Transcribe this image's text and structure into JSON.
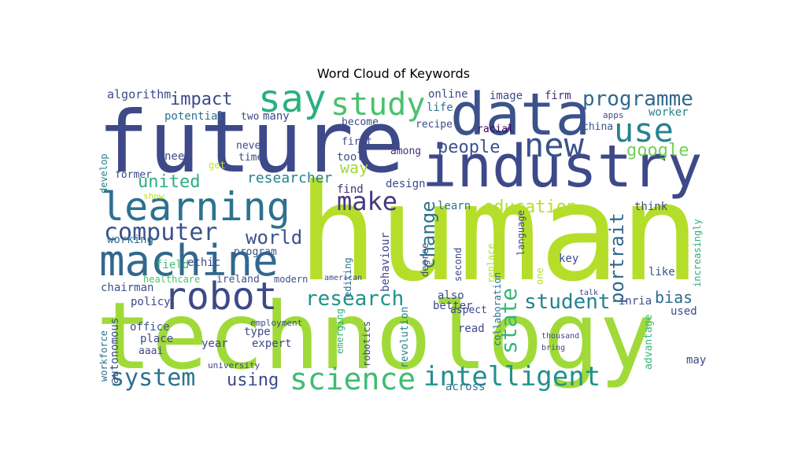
{
  "chart_data": {
    "type": "wordcloud",
    "title": "Word Cloud of Keywords",
    "colormap": "viridis",
    "words": [
      {
        "text": "human",
        "color": "#b5de2b"
      },
      {
        "text": "technology",
        "color": "#a0da39"
      },
      {
        "text": "future",
        "color": "#3e4989"
      },
      {
        "text": "industry",
        "color": "#3e4989"
      },
      {
        "text": "data",
        "color": "#3b528b"
      },
      {
        "text": "machine",
        "color": "#31688e"
      },
      {
        "text": "learning",
        "color": "#2c728e"
      },
      {
        "text": "science",
        "color": "#3fbc73"
      },
      {
        "text": "robot",
        "color": "#3e4989"
      },
      {
        "text": "say",
        "color": "#2ab07f"
      },
      {
        "text": "study",
        "color": "#4ac16d"
      },
      {
        "text": "new",
        "color": "#3b528b"
      },
      {
        "text": "use",
        "color": "#26828e"
      },
      {
        "text": "intelligent",
        "color": "#21918c"
      },
      {
        "text": "make",
        "color": "#443983"
      },
      {
        "text": "computer",
        "color": "#3b528b"
      },
      {
        "text": "system",
        "color": "#2c728e"
      },
      {
        "text": "research",
        "color": "#21918c"
      },
      {
        "text": "student",
        "color": "#26828e"
      },
      {
        "text": "programme",
        "color": "#31688e"
      },
      {
        "text": "world",
        "color": "#3b528b"
      },
      {
        "text": "education",
        "color": "#b5de2b"
      },
      {
        "text": "google",
        "color": "#73d056"
      },
      {
        "text": "people",
        "color": "#3b528b"
      },
      {
        "text": "impact",
        "color": "#3e4989"
      },
      {
        "text": "united",
        "color": "#2ab07f"
      },
      {
        "text": "portrait",
        "color": "#31688e"
      },
      {
        "text": "state",
        "color": "#35b779"
      },
      {
        "text": "change",
        "color": "#2c728e"
      },
      {
        "text": "using",
        "color": "#3e4989"
      },
      {
        "text": "way",
        "color": "#a0da39"
      },
      {
        "text": "researcher",
        "color": "#26828e"
      },
      {
        "text": "bias",
        "color": "#31688e"
      },
      {
        "text": "online",
        "color": "#3e4989"
      },
      {
        "text": "image",
        "color": "#3e4989"
      },
      {
        "text": "firm",
        "color": "#472d7b"
      },
      {
        "text": "life",
        "color": "#2c728e"
      },
      {
        "text": "recipe",
        "color": "#3e4989"
      },
      {
        "text": "racial",
        "color": "#440154"
      },
      {
        "text": "first",
        "color": "#3e4989"
      },
      {
        "text": "tool",
        "color": "#3b528b"
      },
      {
        "text": "among",
        "color": "#472d7b"
      },
      {
        "text": "design",
        "color": "#3e4989"
      },
      {
        "text": "learn",
        "color": "#2c728e"
      },
      {
        "text": "find",
        "color": "#472d7b"
      },
      {
        "text": "worker",
        "color": "#26828e"
      },
      {
        "text": "china",
        "color": "#3b528b"
      },
      {
        "text": "apps",
        "color": "#3e4989"
      },
      {
        "text": "think",
        "color": "#3e4989"
      },
      {
        "text": "like",
        "color": "#3b528b"
      },
      {
        "text": "key",
        "color": "#3e4989"
      },
      {
        "text": "inria",
        "color": "#3b528b"
      },
      {
        "text": "may",
        "color": "#3e4989"
      },
      {
        "text": "used",
        "color": "#3e4989"
      },
      {
        "text": "advantage",
        "color": "#35b779"
      },
      {
        "text": "increasingly",
        "color": "#2ab07f"
      },
      {
        "text": "algorithm",
        "color": "#3e4989"
      },
      {
        "text": "potential",
        "color": "#2c728e"
      },
      {
        "text": "two",
        "color": "#3e4989"
      },
      {
        "text": "many",
        "color": "#3e4989"
      },
      {
        "text": "become",
        "color": "#3e4989"
      },
      {
        "text": "need",
        "color": "#3e4989"
      },
      {
        "text": "never",
        "color": "#3e4989"
      },
      {
        "text": "time",
        "color": "#3e4989"
      },
      {
        "text": "get",
        "color": "#c8e020"
      },
      {
        "text": "former",
        "color": "#3e4989"
      },
      {
        "text": "show",
        "color": "#b5de2b"
      },
      {
        "text": "develop",
        "color": "#26828e"
      },
      {
        "text": "working",
        "color": "#2c728e"
      },
      {
        "text": "field",
        "color": "#3fbc73"
      },
      {
        "text": "ethic",
        "color": "#3e4989"
      },
      {
        "text": "program",
        "color": "#3b528b"
      },
      {
        "text": "chairman",
        "color": "#3b528b"
      },
      {
        "text": "healthcare",
        "color": "#4ac16d"
      },
      {
        "text": "ireland",
        "color": "#3b528b"
      },
      {
        "text": "modern",
        "color": "#3b528b"
      },
      {
        "text": "policy",
        "color": "#3e4989"
      },
      {
        "text": "office",
        "color": "#3b528b"
      },
      {
        "text": "place",
        "color": "#3e4989"
      },
      {
        "text": "aaai",
        "color": "#3e4989"
      },
      {
        "text": "year",
        "color": "#3e4989"
      },
      {
        "text": "type",
        "color": "#3e4989"
      },
      {
        "text": "expert",
        "color": "#3e4989"
      },
      {
        "text": "behaviour",
        "color": "#3e4989"
      },
      {
        "text": "editing",
        "color": "#2c728e"
      },
      {
        "text": "degree",
        "color": "#3e4989"
      },
      {
        "text": "second",
        "color": "#3e4989"
      },
      {
        "text": "also",
        "color": "#3e4989"
      },
      {
        "text": "better",
        "color": "#3e4989"
      },
      {
        "text": "aspect",
        "color": "#3e4989"
      },
      {
        "text": "read",
        "color": "#3e4989"
      },
      {
        "text": "first-read",
        "color": "#3e4989"
      },
      {
        "text": "revolution",
        "color": "#26828e"
      },
      {
        "text": "robotics",
        "color": "#3e4989"
      },
      {
        "text": "emerging",
        "color": "#2ab07f"
      },
      {
        "text": "across",
        "color": "#2c728e"
      },
      {
        "text": "replace",
        "color": "#b5de2b"
      },
      {
        "text": "collaboration",
        "color": "#2c728e"
      },
      {
        "text": "language",
        "color": "#3e4989"
      },
      {
        "text": "one",
        "color": "#b5de2b"
      },
      {
        "text": "talk",
        "color": "#3e4989"
      },
      {
        "text": "thousand",
        "color": "#3e4989"
      },
      {
        "text": "bring",
        "color": "#3e4989"
      },
      {
        "text": "autonomous",
        "color": "#3b528b"
      },
      {
        "text": "workforce",
        "color": "#2c728e"
      },
      {
        "text": "university",
        "color": "#3e4989"
      },
      {
        "text": "employment",
        "color": "#3e4989"
      },
      {
        "text": "american",
        "color": "#3e4989"
      }
    ]
  }
}
